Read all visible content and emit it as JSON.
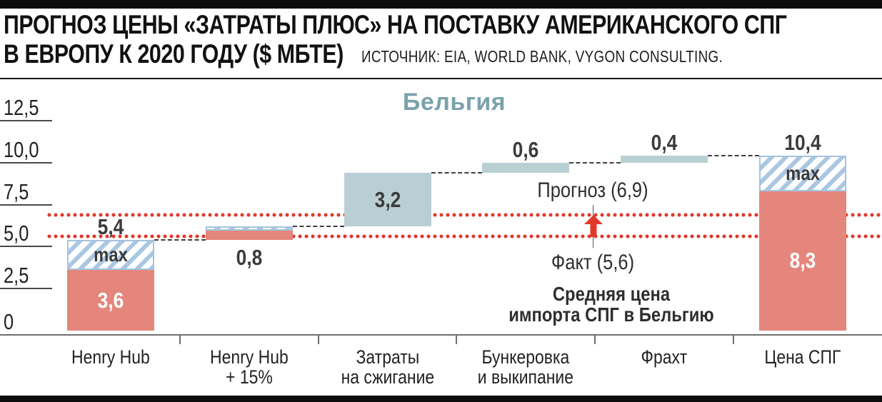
{
  "header": {
    "title_line1": "ПРОГНОЗ ЦЕНЫ «ЗАТРАТЫ ПЛЮС» НА ПОСТАВКУ АМЕРИКАНСКОГО СПГ",
    "title_line2": "В ЕВРОПУ К 2020 ГОДУ ($ МБТЕ)",
    "source": "ИСТОЧНИК: EIA, WORLD BANK, VYGON CONSULTING."
  },
  "chart_data": {
    "type": "bar",
    "subtype": "waterfall",
    "title": "Прогноз цены «затраты плюс» на поставку американского СПГ в Европу к 2020 году ($ МБТЕ)",
    "subtitle": "Бельгия",
    "ylim": [
      0,
      12.5
    ],
    "grid": "left-ticks-only",
    "yticks": [
      {
        "label": "12,5",
        "value": 12.5
      },
      {
        "label": "10,0",
        "value": 10.0
      },
      {
        "label": "7,5",
        "value": 7.5
      },
      {
        "label": "5,0",
        "value": 5.0
      },
      {
        "label": "2,5",
        "value": 2.5
      },
      {
        "label": "0",
        "value": 0
      }
    ],
    "categories": [
      {
        "lines": [
          "Henry Hub"
        ]
      },
      {
        "lines": [
          "Henry Hub",
          "+ 15%"
        ]
      },
      {
        "lines": [
          "Затраты",
          "на сжигание"
        ]
      },
      {
        "lines": [
          "Бункеровка",
          "и выкипание"
        ]
      },
      {
        "lines": [
          "Фрахт"
        ]
      },
      {
        "lines": [
          "Цена СПГ"
        ]
      }
    ],
    "bars": [
      {
        "cat": 0,
        "label": "5,4",
        "label_pos": "above",
        "min": 3.6,
        "max": 5.4,
        "segments": [
          {
            "from": 0,
            "to": 3.6,
            "style": "red",
            "text": "3,6"
          },
          {
            "from": 3.6,
            "to": 5.4,
            "style": "hatch",
            "text": "max"
          }
        ]
      },
      {
        "cat": 1,
        "label": "0,8",
        "label_pos": "below",
        "value": 0.8,
        "segments": [
          {
            "from": 5.4,
            "to": 5.95,
            "style": "red",
            "text": ""
          },
          {
            "from": 5.95,
            "to": 6.2,
            "style": "hatch",
            "text": ""
          }
        ]
      },
      {
        "cat": 2,
        "label": "3,2",
        "label_pos": "inside",
        "value": 3.2,
        "segments": [
          {
            "from": 6.2,
            "to": 9.4,
            "style": "blue",
            "text": ""
          }
        ]
      },
      {
        "cat": 3,
        "label": "0,6",
        "label_pos": "above",
        "value": 0.6,
        "segments": [
          {
            "from": 9.4,
            "to": 10.0,
            "style": "blue",
            "text": ""
          }
        ]
      },
      {
        "cat": 4,
        "label": "0,4",
        "label_pos": "above",
        "value": 0.4,
        "segments": [
          {
            "from": 10.0,
            "to": 10.4,
            "style": "blue",
            "text": ""
          }
        ]
      },
      {
        "cat": 5,
        "label": "10,4",
        "label_pos": "above",
        "min": 8.3,
        "max": 10.4,
        "segments": [
          {
            "from": 0,
            "to": 8.3,
            "style": "red",
            "text": "8,3"
          },
          {
            "from": 8.3,
            "to": 10.4,
            "style": "hatch",
            "text": "max"
          }
        ]
      }
    ],
    "connectors": [
      {
        "after": 0,
        "value": 5.4
      },
      {
        "after": 1,
        "value": 6.2
      },
      {
        "after": 2,
        "value": 9.4
      },
      {
        "after": 3,
        "value": 10.0
      },
      {
        "after": 4,
        "value": 10.4
      }
    ],
    "reference_lines": [
      {
        "label": "Прогноз (6,9)",
        "value": 6.9
      },
      {
        "label": "Факт (5,6)",
        "value": 5.6
      }
    ],
    "note_lines": [
      "Средняя цена",
      "импорта СПГ в Бельгию"
    ],
    "colors": {
      "min_bar": "#e5867c",
      "component_bar": "#bacfd4",
      "hatch_stripe": "#aac7e2",
      "hatch_border": "#a5c3e0",
      "reference": "#e0392b",
      "subtitle": "#7aa2ab",
      "text_dark": "#3b3b3b"
    }
  }
}
